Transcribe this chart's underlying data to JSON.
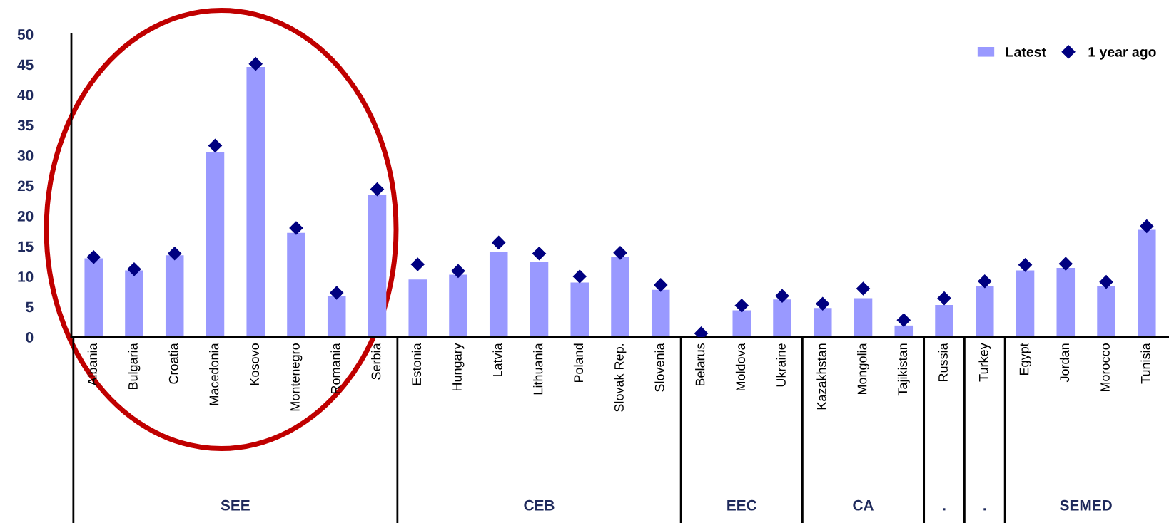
{
  "chart_data": {
    "type": "bar",
    "categories": [
      "Albania",
      "Bulgaria",
      "Croatia",
      "Macedonia",
      "Kosovo",
      "Montenegro",
      "Romania",
      "Serbia",
      "Estonia",
      "Hungary",
      "Latvia",
      "Lithuania",
      "Poland",
      "Slovak Rep.",
      "Slovenia",
      "Belarus",
      "Moldova",
      "Ukraine",
      "Kazakhstan",
      "Mongolia",
      "Tajikistan",
      "Russia",
      "Turkey",
      "Egypt",
      "Jordan",
      "Morocco",
      "Tunisia"
    ],
    "series": [
      {
        "name": "Latest",
        "color": "#9999ff",
        "values": [
          13,
          11,
          13.5,
          30.5,
          44.6,
          17.2,
          6.7,
          23.5,
          9.5,
          10.3,
          14,
          12.4,
          9,
          13.2,
          7.8,
          0,
          4.4,
          6.2,
          4.8,
          6.4,
          1.9,
          5.3,
          8.4,
          11,
          11.4,
          8.4,
          17.7
        ]
      },
      {
        "name": "1 year ago",
        "type": "scatter",
        "color": "#000080",
        "marker": "diamond",
        "values": [
          13.2,
          11.2,
          13.8,
          31.6,
          45.1,
          18,
          7.3,
          24.4,
          12,
          10.9,
          15.6,
          13.8,
          10,
          13.9,
          8.6,
          0.6,
          5.2,
          6.8,
          5.5,
          8,
          2.8,
          6.4,
          9.2,
          11.9,
          12.1,
          9.1,
          18.3
        ]
      }
    ],
    "ylim": [
      0,
      50
    ],
    "yticks": [
      0,
      5,
      10,
      15,
      20,
      25,
      30,
      35,
      40,
      45,
      50
    ],
    "grid": false,
    "legend": "top right",
    "annotations": [
      "SEE",
      "CEB",
      "EEC",
      "CA",
      ".",
      ".",
      "SEMED"
    ]
  }
}
